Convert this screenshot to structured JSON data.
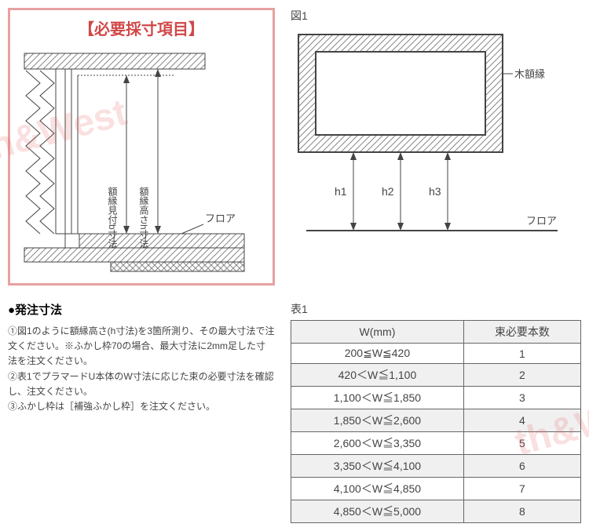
{
  "left_panel": {
    "title": "【必要採寸項目】",
    "border_color": "#e8a0a0",
    "title_color": "#d04848",
    "labels": {
      "vert1": "額縁見付b寸法",
      "vert2": "額縁高さh寸法",
      "floor": "フロア"
    },
    "diagram": {
      "stroke": "#444444",
      "hatch_color": "#888888"
    }
  },
  "right_panel": {
    "title": "図1",
    "labels": {
      "frame": "木額縁",
      "h1": "h1",
      "h2": "h2",
      "h3": "h3",
      "floor": "フロア"
    },
    "diagram": {
      "stroke": "#444444",
      "hatch_color": "#888888",
      "frame_outer_w": 260,
      "frame_outer_h": 150,
      "frame_thickness": 22
    }
  },
  "order_section": {
    "title": "●発注寸法",
    "items": [
      "①図1のように額縁高さ(h寸法)を3箇所測り、その最大寸法で注文ください。※ふかし枠70の場合、最大寸法に2mm足した寸法を注文ください。",
      "②表1でプラマードU本体のW寸法に応じた束の必要寸法を確認し、注文ください。",
      "③ふかし枠は［補強ふかし枠］を注文ください。"
    ]
  },
  "table": {
    "title": "表1",
    "columns": [
      "W(mm)",
      "束必要本数"
    ],
    "rows": [
      [
        "200≦W≦420",
        "1"
      ],
      [
        "420＜W≦1,100",
        "2"
      ],
      [
        "1,100＜W≦1,850",
        "3"
      ],
      [
        "1,850＜W≦2,600",
        "4"
      ],
      [
        "2,600＜W≦3,350",
        "5"
      ],
      [
        "3,350＜W≦4,100",
        "6"
      ],
      [
        "4,100＜W≦4,850",
        "7"
      ],
      [
        "4,850＜W≦5,000",
        "8"
      ]
    ],
    "alt_row_bg": "#f0f0f0",
    "border_color": "#666666"
  },
  "watermark": {
    "text1": "th&West",
    "text2": "th&W",
    "color": "rgba(232,100,100,0.2)"
  }
}
